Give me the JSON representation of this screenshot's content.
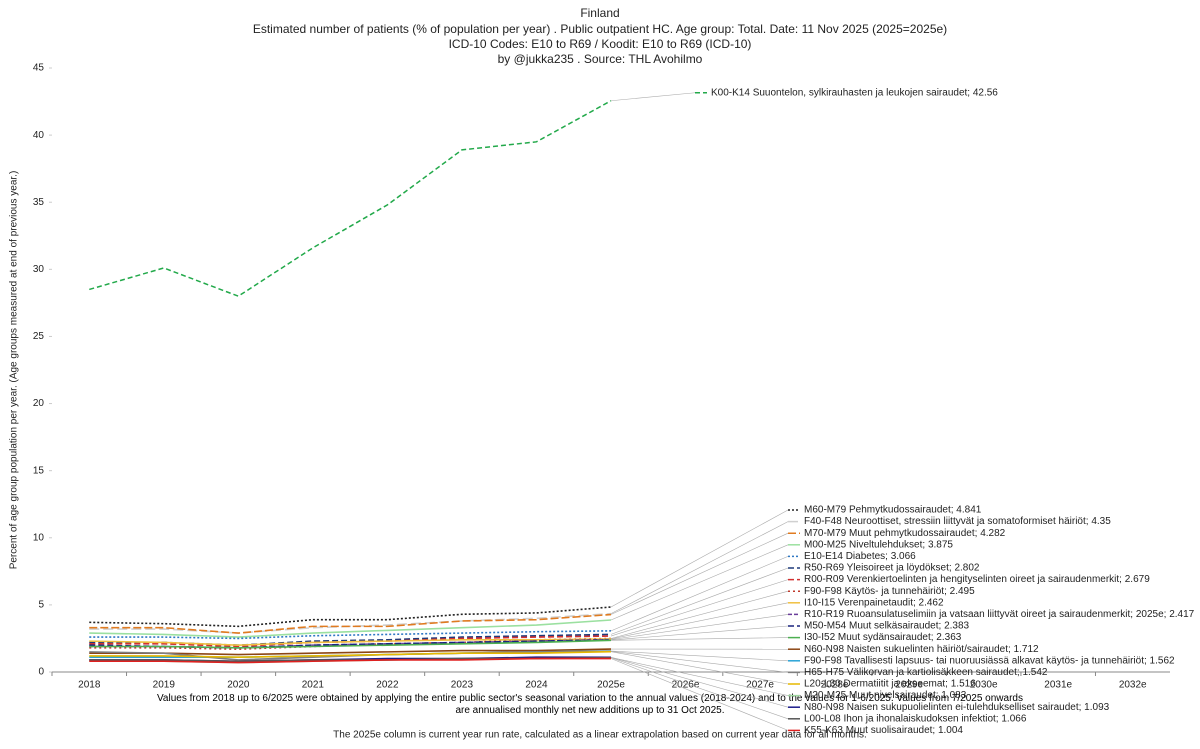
{
  "chart_data": {
    "type": "line",
    "title": "Finland",
    "subtitle": "Estimated number of patients  (% of population per year) . Public outpatient HC. Age group: Total. Date: 11 Nov 2025 (2025=2025e)",
    "subtitle2": "ICD-10 Codes: E10 to R69 / Koodit: E10 to R69 (ICD-10)",
    "byline": "by @jukka235 . Source: THL Avohilmo",
    "ylabel": "Percent of age group population per year. (Age groups measured at end of previous year.)",
    "footnote": "Values from 2018 up to 6/2025 were obtained by applying the entire public sector's seasonal variation to the annual values (2018-2024) and to the values for 1-6/2025. Values from 7/2025 onwards are annualised monthly net new additions up to 31 Oct 2025.",
    "footnote2": "The 2025e column is current year run rate, calculated as a linear extrapolation based on current year data for all months.",
    "categories": [
      "2018",
      "2019",
      "2020",
      "2021",
      "2022",
      "2023",
      "2024",
      "2025e",
      "2026e",
      "2027e",
      "2028e",
      "2029e",
      "2030e",
      "2031e",
      "2032e"
    ],
    "ylim": [
      0,
      45
    ],
    "yticks": [
      0,
      5,
      10,
      15,
      20,
      25,
      30,
      35,
      40,
      45
    ],
    "grid": false,
    "series": [
      {
        "name": "K00-K14 Suuontelon, sylkirauhasten ja leukojen sairaudet; 42.56",
        "color": "#22a94a",
        "dash": "5,3",
        "values": [
          28.5,
          30.1,
          28.0,
          31.6,
          34.8,
          38.9,
          39.5,
          42.56,
          null,
          null,
          null,
          null,
          null,
          null,
          null
        ]
      },
      {
        "name": "M60-M79 Pehmytkudossairaudet; 4.841",
        "color": "#222222",
        "dash": "2,2",
        "values": [
          3.7,
          3.6,
          3.4,
          3.9,
          3.9,
          4.3,
          4.4,
          4.841,
          null,
          null,
          null,
          null,
          null,
          null,
          null
        ]
      },
      {
        "name": "F40-F48 Neuroottiset, stressiin liittyvät ja somatoformiset häiriöt; 4.35",
        "color": "#d0d0d0",
        "dash": "10,4",
        "values": [
          3.2,
          3.2,
          2.9,
          3.3,
          3.5,
          3.8,
          4.0,
          4.35,
          null,
          null,
          null,
          null,
          null,
          null,
          null
        ]
      },
      {
        "name": "M70-M79 Muut pehmytkudossairaudet; 4.282",
        "color": "#e07b20",
        "dash": "8,3",
        "values": [
          3.3,
          3.3,
          2.9,
          3.4,
          3.4,
          3.8,
          3.9,
          4.282,
          null,
          null,
          null,
          null,
          null,
          null,
          null
        ]
      },
      {
        "name": "M00-M25 Niveltulehdukset; 3.875",
        "color": "#9be0a0",
        "dash": "",
        "values": [
          2.9,
          2.8,
          2.6,
          2.9,
          3.1,
          3.3,
          3.5,
          3.875,
          null,
          null,
          null,
          null,
          null,
          null,
          null
        ]
      },
      {
        "name": "E10-E14 Diabetes; 3.066",
        "color": "#2f78c4",
        "dash": "2,2",
        "values": [
          2.6,
          2.6,
          2.5,
          2.7,
          2.8,
          2.9,
          3.0,
          3.066,
          null,
          null,
          null,
          null,
          null,
          null,
          null
        ]
      },
      {
        "name": "R50-R69 Yleisoireet ja löydökset; 2.802",
        "color": "#1f3a7a",
        "dash": "6,3",
        "values": [
          2.2,
          2.2,
          2.0,
          2.3,
          2.4,
          2.6,
          2.7,
          2.802,
          null,
          null,
          null,
          null,
          null,
          null,
          null
        ]
      },
      {
        "name": "R00-R09 Verenkiertoelinten ja hengityselinten oireet ja sairaudenmerkit; 2.679",
        "color": "#d23030",
        "dash": "6,3",
        "values": [
          2.1,
          2.1,
          1.9,
          2.2,
          2.3,
          2.5,
          2.6,
          2.679,
          null,
          null,
          null,
          null,
          null,
          null,
          null
        ]
      },
      {
        "name": "F90-F98 Käytös- ja tunnehäiriöt; 2.495",
        "color": "#c0392b",
        "dash": "2,3",
        "values": [
          1.8,
          1.8,
          1.7,
          1.9,
          2.1,
          2.2,
          2.4,
          2.495,
          null,
          null,
          null,
          null,
          null,
          null,
          null
        ]
      },
      {
        "name": "I10-I15 Verenpainetaudit; 2.462",
        "color": "#f0c040",
        "dash": "",
        "values": [
          2.3,
          2.2,
          2.0,
          2.2,
          2.3,
          2.4,
          2.4,
          2.462,
          null,
          null,
          null,
          null,
          null,
          null,
          null
        ]
      },
      {
        "name": "R10-R19 Ruoansulatuselimiin ja vatsaan liittyvät oireet ja sairaudenmerkit; 2025e; 2.417",
        "color": "#6a3d9a",
        "dash": "4,2",
        "values": [
          1.9,
          1.9,
          1.8,
          2.0,
          2.1,
          2.2,
          2.3,
          2.417,
          null,
          null,
          null,
          null,
          null,
          null,
          null
        ]
      },
      {
        "name": "M50-M54 Muut selkäsairaudet; 2.383",
        "color": "#1a237e",
        "dash": "6,3",
        "values": [
          2.0,
          1.9,
          1.8,
          2.0,
          2.1,
          2.2,
          2.3,
          2.383,
          null,
          null,
          null,
          null,
          null,
          null,
          null
        ]
      },
      {
        "name": "I30-I52 Muut sydänsairaudet; 2.363",
        "color": "#4caf50",
        "dash": "",
        "values": [
          1.9,
          1.9,
          1.8,
          1.9,
          2.0,
          2.1,
          2.2,
          2.363,
          null,
          null,
          null,
          null,
          null,
          null,
          null
        ]
      },
      {
        "name": "N60-N98 Naisten sukuelinten häiriöt/sairaudet; 1.712",
        "color": "#8b4513",
        "dash": "",
        "values": [
          1.4,
          1.4,
          1.3,
          1.4,
          1.5,
          1.6,
          1.6,
          1.712,
          null,
          null,
          null,
          null,
          null,
          null,
          null
        ]
      },
      {
        "name": "F90-F98 Tavallisesti lapsuus- tai nuoruusiässä alkavat käytös- ja tunnehäiriöt; 1.562",
        "color": "#29a3d6",
        "dash": "",
        "values": [
          1.1,
          1.1,
          1.1,
          1.2,
          1.3,
          1.4,
          1.5,
          1.562,
          null,
          null,
          null,
          null,
          null,
          null,
          null
        ]
      },
      {
        "name": "H65-H75 Välikorvan ja kartiolisäkkeen sairaudet; 1.542",
        "color": "#7f7f7f",
        "dash": "",
        "values": [
          1.5,
          1.4,
          0.9,
          1.1,
          1.3,
          1.4,
          1.5,
          1.542,
          null,
          null,
          null,
          null,
          null,
          null,
          null
        ]
      },
      {
        "name": "L20-L30 Dermatiitit ja ekseemat; 1.516",
        "color": "#e6b800",
        "dash": "",
        "values": [
          1.2,
          1.2,
          1.1,
          1.2,
          1.3,
          1.4,
          1.4,
          1.516,
          null,
          null,
          null,
          null,
          null,
          null,
          null
        ]
      },
      {
        "name": "M20-M25 Muut nivelsairaudet; 1.083",
        "color": "#a0d8a0",
        "dash": "",
        "values": [
          0.8,
          0.8,
          0.7,
          0.8,
          0.9,
          1.0,
          1.0,
          1.083,
          null,
          null,
          null,
          null,
          null,
          null,
          null
        ]
      },
      {
        "name": "N80-N98 Naisen sukupuolielinten ei-tulehdukselliset sairaudet; 1.093",
        "color": "#1a1a8a",
        "dash": "",
        "values": [
          0.9,
          0.9,
          0.8,
          0.9,
          1.0,
          1.0,
          1.1,
          1.093,
          null,
          null,
          null,
          null,
          null,
          null,
          null
        ]
      },
      {
        "name": "L00-L08 Ihon ja ihonalaiskudoksen infektiot; 1.066",
        "color": "#555555",
        "dash": "",
        "values": [
          0.9,
          0.9,
          0.8,
          0.9,
          0.9,
          1.0,
          1.0,
          1.066,
          null,
          null,
          null,
          null,
          null,
          null,
          null
        ]
      },
      {
        "name": "K55-K63 Muut suolisairaudet; 1.004",
        "color": "#e02020",
        "dash": "",
        "values": [
          0.8,
          0.8,
          0.7,
          0.8,
          0.9,
          0.9,
          1.0,
          1.004,
          null,
          null,
          null,
          null,
          null,
          null,
          null
        ]
      }
    ]
  }
}
